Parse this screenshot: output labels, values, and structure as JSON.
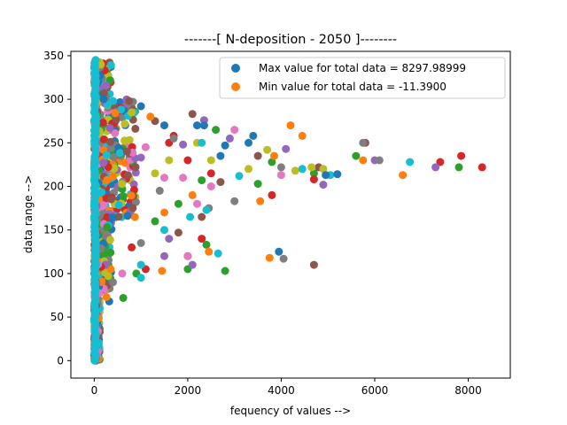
{
  "chart_data": {
    "type": "scatter",
    "title": "-------[ N-deposition - 2050 ]--------",
    "xlabel": "fequency of values -->",
    "ylabel": "data range -->",
    "xlim": [
      -500,
      8900
    ],
    "ylim": [
      -20,
      355
    ],
    "xticks": [
      0,
      2000,
      4000,
      6000,
      8000
    ],
    "xtick_labels": [
      "0",
      "2000",
      "4000",
      "6000",
      "8000"
    ],
    "yticks": [
      0,
      50,
      100,
      150,
      200,
      250,
      300,
      350
    ],
    "ytick_labels": [
      "0",
      "50",
      "100",
      "150",
      "200",
      "250",
      "300",
      "350"
    ],
    "grid": false,
    "legend_position": "top-right",
    "colors": [
      "#1f77b4",
      "#ff7f0e",
      "#2ca02c",
      "#d62728",
      "#9467bd",
      "#8c564b",
      "#e377c2",
      "#7f7f7f",
      "#bcbd22",
      "#17becf"
    ],
    "series": [
      {
        "name": "Max value for total data = 8297.98999",
        "color": "#1f77b4",
        "points": [
          [
            320,
            68
          ],
          [
            1000,
            292
          ],
          [
            2200,
            270
          ],
          [
            2350,
            270
          ],
          [
            2700,
            235
          ],
          [
            3300,
            250
          ],
          [
            3400,
            258
          ],
          [
            3950,
            125
          ],
          [
            5200,
            214
          ],
          [
            4950,
            213
          ],
          [
            200,
            300
          ],
          [
            1500,
            270
          ],
          [
            2800,
            247
          ]
        ]
      },
      {
        "name": "Min value for total data = -11.3900",
        "color": "#ff7f0e",
        "points": [
          [
            260,
            73
          ],
          [
            1500,
            170
          ],
          [
            1450,
            103
          ],
          [
            2450,
            125
          ],
          [
            3550,
            183
          ],
          [
            3750,
            118
          ],
          [
            3850,
            235
          ],
          [
            4200,
            270
          ],
          [
            4450,
            258
          ],
          [
            5750,
            230
          ],
          [
            6600,
            213
          ],
          [
            450,
            284
          ],
          [
            2100,
            190
          ],
          [
            1200,
            280
          ]
        ]
      }
    ],
    "extra_points": [
      {
        "color": "#2ca02c",
        "points": [
          [
            2800,
            103
          ],
          [
            2400,
            133
          ],
          [
            2000,
            105
          ],
          [
            3500,
            203
          ],
          [
            3800,
            228
          ],
          [
            4700,
            215
          ],
          [
            5600,
            235
          ],
          [
            7800,
            222
          ],
          [
            620,
            72
          ],
          [
            900,
            100
          ],
          [
            1800,
            180
          ],
          [
            2300,
            207
          ],
          [
            1300,
            160
          ],
          [
            2600,
            265
          ]
        ]
      },
      {
        "color": "#d62728",
        "points": [
          [
            2000,
            120
          ],
          [
            2000,
            230
          ],
          [
            1700,
            258
          ],
          [
            2300,
            140
          ],
          [
            3800,
            190
          ],
          [
            4700,
            208
          ],
          [
            7400,
            228
          ],
          [
            7850,
            235
          ],
          [
            8297,
            222
          ],
          [
            1600,
            250
          ],
          [
            1100,
            105
          ],
          [
            2500,
            215
          ],
          [
            800,
            130
          ]
        ]
      },
      {
        "color": "#9467bd",
        "points": [
          [
            1500,
            120
          ],
          [
            2100,
            110
          ],
          [
            4100,
            243
          ],
          [
            4900,
            202
          ],
          [
            6000,
            230
          ],
          [
            7300,
            222
          ],
          [
            2350,
            276
          ],
          [
            1900,
            248
          ],
          [
            1000,
            233
          ],
          [
            1600,
            140
          ],
          [
            2900,
            255
          ]
        ]
      },
      {
        "color": "#8c564b",
        "points": [
          [
            4700,
            110
          ],
          [
            1800,
            147
          ],
          [
            3500,
            235
          ],
          [
            4800,
            222
          ],
          [
            5800,
            250
          ],
          [
            2700,
            205
          ],
          [
            700,
            240
          ],
          [
            1300,
            275
          ],
          [
            2100,
            283
          ],
          [
            2300,
            165
          ]
        ]
      },
      {
        "color": "#e377c2",
        "points": [
          [
            1900,
            210
          ],
          [
            4000,
            213
          ],
          [
            2500,
            200
          ],
          [
            1100,
            245
          ],
          [
            2000,
            120
          ],
          [
            1500,
            210
          ],
          [
            600,
            100
          ],
          [
            3000,
            265
          ],
          [
            2200,
            180
          ]
        ]
      },
      {
        "color": "#7f7f7f",
        "points": [
          [
            1700,
            255
          ],
          [
            3000,
            183
          ],
          [
            4050,
            117
          ],
          [
            4000,
            222
          ],
          [
            5750,
            250
          ],
          [
            6100,
            230
          ],
          [
            1000,
            135
          ],
          [
            2450,
            175
          ],
          [
            1400,
            195
          ],
          [
            400,
            90
          ]
        ]
      },
      {
        "color": "#bcbd22",
        "points": [
          [
            2500,
            230
          ],
          [
            3300,
            220
          ],
          [
            4300,
            218
          ],
          [
            4650,
            222
          ],
          [
            4900,
            220
          ],
          [
            2200,
            250
          ],
          [
            1600,
            230
          ],
          [
            800,
            285
          ],
          [
            1300,
            215
          ],
          [
            3700,
            242
          ]
        ]
      },
      {
        "color": "#17becf",
        "points": [
          [
            1000,
            95
          ],
          [
            2650,
            123
          ],
          [
            2400,
            173
          ],
          [
            4450,
            220
          ],
          [
            5050,
            213
          ],
          [
            6750,
            228
          ],
          [
            2050,
            165
          ],
          [
            1500,
            150
          ],
          [
            2300,
            250
          ],
          [
            3100,
            212
          ],
          [
            1000,
            110
          ]
        ]
      }
    ]
  }
}
